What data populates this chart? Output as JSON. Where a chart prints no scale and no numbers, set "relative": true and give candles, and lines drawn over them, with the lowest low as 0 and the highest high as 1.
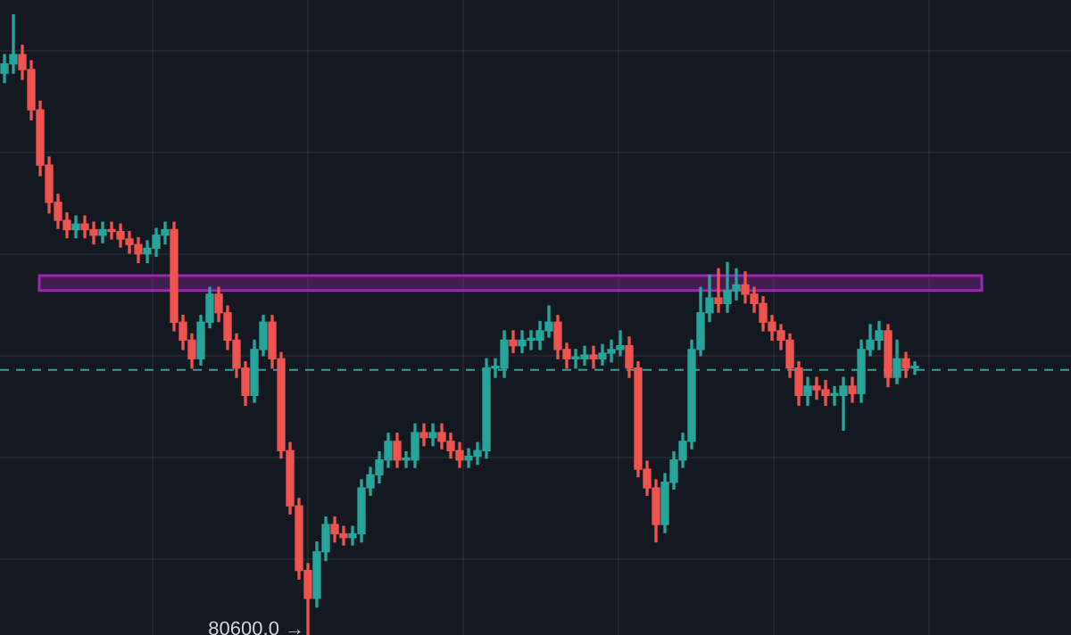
{
  "chart_data": {
    "type": "candlestick",
    "relative": true,
    "grid": true,
    "legend": false,
    "categories": [
      null,
      null,
      null,
      null,
      null,
      null,
      null,
      null,
      null,
      null,
      null,
      null,
      null,
      null,
      null,
      null,
      null,
      null,
      null,
      null,
      null,
      null,
      null,
      null,
      null,
      null,
      null,
      null,
      null,
      null,
      null,
      null,
      null,
      null,
      null,
      null,
      null,
      null,
      null,
      null,
      null,
      null,
      null,
      null,
      null,
      null,
      null,
      null,
      null,
      null,
      null,
      null,
      null,
      null,
      null,
      null,
      null,
      null,
      null,
      null,
      null,
      null,
      null,
      null,
      null,
      null,
      null,
      null,
      null,
      null,
      null,
      null,
      null,
      null,
      null,
      null,
      null,
      null,
      null,
      null,
      null,
      null,
      null,
      null,
      null,
      null,
      null,
      null,
      null,
      null,
      null,
      null,
      null,
      null,
      null,
      null,
      null,
      null,
      null,
      null,
      null,
      null,
      null
    ],
    "ohlc": [
      [
        0.905,
        0.935,
        0.89,
        0.92
      ],
      [
        0.92,
        1,
        0.905,
        0.935
      ],
      [
        0.935,
        0.95,
        0.895,
        0.911
      ],
      [
        0.911,
        0.925,
        0.83,
        0.846
      ],
      [
        0.846,
        0.86,
        0.74,
        0.757
      ],
      [
        0.757,
        0.77,
        0.68,
        0.697
      ],
      [
        0.697,
        0.71,
        0.655,
        0.668
      ],
      [
        0.668,
        0.68,
        0.64,
        0.653
      ],
      [
        0.653,
        0.675,
        0.64,
        0.662
      ],
      [
        0.662,
        0.675,
        0.64,
        0.653
      ],
      [
        0.653,
        0.665,
        0.63,
        0.644
      ],
      [
        0.644,
        0.665,
        0.632,
        0.653
      ],
      [
        0.653,
        0.665,
        0.638,
        0.65
      ],
      [
        0.65,
        0.662,
        0.625,
        0.638
      ],
      [
        0.638,
        0.65,
        0.615,
        0.629
      ],
      [
        0.629,
        0.64,
        0.6,
        0.614
      ],
      [
        0.614,
        0.635,
        0.6,
        0.623
      ],
      [
        0.623,
        0.655,
        0.61,
        0.644
      ],
      [
        0.644,
        0.665,
        0.63,
        0.653
      ],
      [
        0.653,
        0.665,
        0.49,
        0.504
      ],
      [
        0.504,
        0.515,
        0.46,
        0.475
      ],
      [
        0.475,
        0.485,
        0.43,
        0.445
      ],
      [
        0.445,
        0.515,
        0.435,
        0.504
      ],
      [
        0.504,
        0.56,
        0.495,
        0.549
      ],
      [
        0.549,
        0.56,
        0.505,
        0.519
      ],
      [
        0.519,
        0.53,
        0.46,
        0.475
      ],
      [
        0.475,
        0.485,
        0.415,
        0.43
      ],
      [
        0.43,
        0.44,
        0.37,
        0.386
      ],
      [
        0.386,
        0.475,
        0.375,
        0.46
      ],
      [
        0.46,
        0.515,
        0.45,
        0.504
      ],
      [
        0.504,
        0.515,
        0.43,
        0.445
      ],
      [
        0.445,
        0.455,
        0.285,
        0.297
      ],
      [
        0.297,
        0.31,
        0.195,
        0.208
      ],
      [
        0.208,
        0.22,
        0.09,
        0.104
      ],
      [
        0.104,
        0.115,
        0,
        0.059
      ],
      [
        0.059,
        0.15,
        0.045,
        0.134
      ],
      [
        0.134,
        0.19,
        0.12,
        0.178
      ],
      [
        0.178,
        0.19,
        0.15,
        0.163
      ],
      [
        0.163,
        0.175,
        0.145,
        0.157
      ],
      [
        0.157,
        0.175,
        0.145,
        0.163
      ],
      [
        0.163,
        0.25,
        0.15,
        0.237
      ],
      [
        0.237,
        0.27,
        0.225,
        0.258
      ],
      [
        0.258,
        0.295,
        0.245,
        0.282
      ],
      [
        0.282,
        0.325,
        0.27,
        0.312
      ],
      [
        0.312,
        0.325,
        0.27,
        0.282
      ],
      [
        0.282,
        0.295,
        0.27,
        0.282
      ],
      [
        0.282,
        0.34,
        0.27,
        0.326
      ],
      [
        0.326,
        0.34,
        0.305,
        0.318
      ],
      [
        0.318,
        0.34,
        0.305,
        0.326
      ],
      [
        0.326,
        0.34,
        0.3,
        0.312
      ],
      [
        0.312,
        0.325,
        0.285,
        0.297
      ],
      [
        0.297,
        0.31,
        0.27,
        0.282
      ],
      [
        0.282,
        0.3,
        0.27,
        0.288
      ],
      [
        0.288,
        0.31,
        0.275,
        0.297
      ],
      [
        0.297,
        0.445,
        0.285,
        0.43
      ],
      [
        0.43,
        0.445,
        0.415,
        0.43
      ],
      [
        0.43,
        0.49,
        0.415,
        0.475
      ],
      [
        0.475,
        0.49,
        0.455,
        0.466
      ],
      [
        0.466,
        0.49,
        0.455,
        0.475
      ],
      [
        0.475,
        0.49,
        0.46,
        0.475
      ],
      [
        0.475,
        0.505,
        0.46,
        0.49
      ],
      [
        0.49,
        0.53,
        0.48,
        0.504
      ],
      [
        0.504,
        0.515,
        0.445,
        0.46
      ],
      [
        0.46,
        0.47,
        0.43,
        0.445
      ],
      [
        0.445,
        0.46,
        0.43,
        0.445
      ],
      [
        0.445,
        0.465,
        0.435,
        0.451
      ],
      [
        0.451,
        0.465,
        0.43,
        0.445
      ],
      [
        0.445,
        0.468,
        0.435,
        0.454
      ],
      [
        0.454,
        0.475,
        0.44,
        0.46
      ],
      [
        0.46,
        0.49,
        0.45,
        0.466
      ],
      [
        0.466,
        0.48,
        0.415,
        0.43
      ],
      [
        0.43,
        0.44,
        0.255,
        0.267
      ],
      [
        0.267,
        0.28,
        0.225,
        0.237
      ],
      [
        0.237,
        0.25,
        0.15,
        0.178
      ],
      [
        0.178,
        0.26,
        0.165,
        0.246
      ],
      [
        0.246,
        0.295,
        0.235,
        0.282
      ],
      [
        0.282,
        0.325,
        0.27,
        0.312
      ],
      [
        0.312,
        0.475,
        0.3,
        0.46
      ],
      [
        0.46,
        0.56,
        0.45,
        0.519
      ],
      [
        0.519,
        0.58,
        0.505,
        0.543
      ],
      [
        0.543,
        0.59,
        0.52,
        0.534
      ],
      [
        0.534,
        0.6,
        0.52,
        0.555
      ],
      [
        0.555,
        0.59,
        0.54,
        0.564
      ],
      [
        0.564,
        0.585,
        0.535,
        0.549
      ],
      [
        0.549,
        0.56,
        0.52,
        0.534
      ],
      [
        0.534,
        0.545,
        0.49,
        0.504
      ],
      [
        0.504,
        0.515,
        0.475,
        0.49
      ],
      [
        0.49,
        0.5,
        0.46,
        0.475
      ],
      [
        0.475,
        0.485,
        0.415,
        0.43
      ],
      [
        0.43,
        0.44,
        0.37,
        0.386
      ],
      [
        0.386,
        0.415,
        0.37,
        0.401
      ],
      [
        0.401,
        0.415,
        0.38,
        0.395
      ],
      [
        0.395,
        0.41,
        0.37,
        0.386
      ],
      [
        0.386,
        0.4,
        0.37,
        0.386
      ],
      [
        0.386,
        0.415,
        0.33,
        0.401
      ],
      [
        0.401,
        0.415,
        0.375,
        0.389
      ],
      [
        0.389,
        0.475,
        0.375,
        0.46
      ],
      [
        0.46,
        0.5,
        0.45,
        0.475
      ],
      [
        0.475,
        0.505,
        0.46,
        0.49
      ],
      [
        0.49,
        0.5,
        0.4,
        0.415
      ],
      [
        0.415,
        0.475,
        0.405,
        0.445
      ],
      [
        0.445,
        0.455,
        0.415,
        0.43
      ],
      [
        0.43,
        0.44,
        0.42,
        0.43
      ]
    ],
    "ref_lines": [
      {
        "axis": "y",
        "value": 0.427,
        "color": "#26a69a",
        "line_style": "dashed"
      }
    ],
    "bands": [
      {
        "axis": "y",
        "from": 0.555,
        "to": 0.579,
        "color": "#9c27b0"
      }
    ],
    "annotations": [
      "80600.0 →"
    ]
  }
}
